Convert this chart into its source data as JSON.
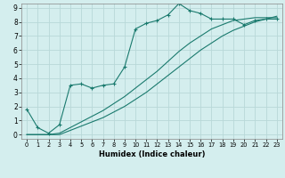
{
  "xlabel": "Humidex (Indice chaleur)",
  "background_color": "#d4eeee",
  "grid_color": "#b8d8d8",
  "line_color": "#1a7a6e",
  "xlim": [
    -0.5,
    23.5
  ],
  "ylim": [
    -0.3,
    9.3
  ],
  "xticks": [
    0,
    1,
    2,
    3,
    4,
    5,
    6,
    7,
    8,
    9,
    10,
    11,
    12,
    13,
    14,
    15,
    16,
    17,
    18,
    19,
    20,
    21,
    22,
    23
  ],
  "yticks": [
    0,
    1,
    2,
    3,
    4,
    5,
    6,
    7,
    8,
    9
  ],
  "series1_x": [
    0,
    1,
    2,
    3,
    4,
    5,
    6,
    7,
    8,
    9,
    10,
    11,
    12,
    13,
    14,
    15,
    16,
    17,
    18,
    19,
    20,
    21,
    22,
    23
  ],
  "series1_y": [
    1.8,
    0.5,
    0.1,
    0.7,
    3.5,
    3.6,
    3.3,
    3.5,
    3.6,
    4.8,
    7.5,
    7.9,
    8.1,
    8.5,
    9.3,
    8.8,
    8.6,
    8.2,
    8.2,
    8.2,
    7.8,
    8.1,
    8.2,
    8.2
  ],
  "series2_x": [
    0,
    1,
    2,
    3,
    4,
    5,
    6,
    7,
    8,
    9,
    10,
    11,
    12,
    13,
    14,
    15,
    16,
    17,
    18,
    19,
    20,
    21,
    22,
    23
  ],
  "series2_y": [
    0.0,
    0.0,
    0.0,
    0.0,
    0.3,
    0.6,
    0.9,
    1.2,
    1.6,
    2.0,
    2.5,
    3.0,
    3.6,
    4.2,
    4.8,
    5.4,
    6.0,
    6.5,
    7.0,
    7.4,
    7.7,
    8.0,
    8.2,
    8.4
  ],
  "series3_x": [
    0,
    1,
    2,
    3,
    4,
    5,
    6,
    7,
    8,
    9,
    10,
    11,
    12,
    13,
    14,
    15,
    16,
    17,
    18,
    19,
    20,
    21,
    22,
    23
  ],
  "series3_y": [
    0.0,
    0.0,
    0.0,
    0.1,
    0.5,
    0.9,
    1.3,
    1.7,
    2.2,
    2.7,
    3.3,
    3.9,
    4.5,
    5.2,
    5.9,
    6.5,
    7.0,
    7.5,
    7.8,
    8.1,
    8.2,
    8.3,
    8.3,
    8.3
  ],
  "xlabel_fontsize": 6.0,
  "tick_fontsize_x": 4.8,
  "tick_fontsize_y": 5.5,
  "linewidth": 0.8,
  "markersize": 3.0
}
